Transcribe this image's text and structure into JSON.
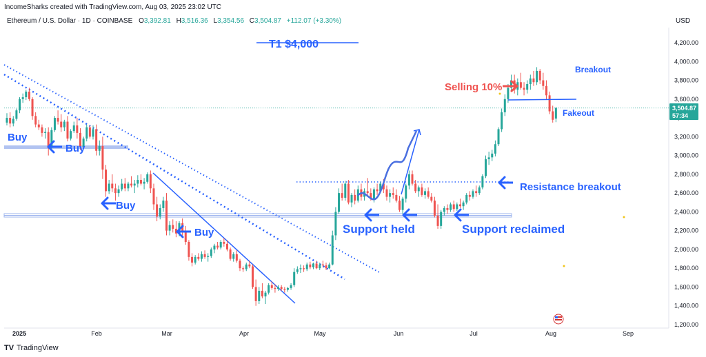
{
  "header": {
    "credit": "IncomeSharks created with TradingView.com, Aug 03, 2025 23:02 UTC",
    "symbol": "Ethereum / U.S. Dollar · 1D · COINBASE",
    "ohlc": [
      {
        "key": "O",
        "value": "3,392.81"
      },
      {
        "key": "H",
        "value": "3,516.36"
      },
      {
        "key": "L",
        "value": "3,354.56"
      },
      {
        "key": "C",
        "value": "3,504.87"
      }
    ],
    "change": "+112.07 (+3.30%)",
    "currency": "USD"
  },
  "footer": {
    "brand_logo": "TV",
    "brand": "TradingView"
  },
  "chart_data": {
    "type": "candlestick",
    "y_ticks": [
      "4,200.00",
      "4,000.00",
      "3,800.00",
      "3,600.00",
      "3,400.00",
      "3,200.00",
      "3,000.00",
      "2,800.00",
      "2,600.00",
      "2,400.00",
      "2,200.00",
      "2,000.00",
      "1,800.00",
      "1,600.00",
      "1,400.00",
      "1,200.00"
    ],
    "x_ticks": [
      "2025",
      "Feb",
      "Mar",
      "Apr",
      "May",
      "Jun",
      "Jul",
      "Aug",
      "Sep"
    ],
    "ylim": [
      1180,
      4320
    ],
    "last_price": "3,504.87",
    "countdown": "57:34",
    "candles": [
      [
        1,
        3350,
        3450,
        3320,
        3400
      ],
      [
        2,
        3400,
        3460,
        3300,
        3340
      ],
      [
        3,
        3340,
        3420,
        3310,
        3390
      ],
      [
        4,
        3390,
        3500,
        3370,
        3480
      ],
      [
        5,
        3480,
        3620,
        3450,
        3600
      ],
      [
        6,
        3600,
        3660,
        3560,
        3620
      ],
      [
        7,
        3620,
        3700,
        3590,
        3680
      ],
      [
        8,
        3680,
        3720,
        3580,
        3600
      ],
      [
        9,
        3600,
        3620,
        3380,
        3420
      ],
      [
        10,
        3420,
        3460,
        3300,
        3330
      ],
      [
        11,
        3330,
        3380,
        3270,
        3300
      ],
      [
        12,
        3300,
        3330,
        3200,
        3240
      ],
      [
        13,
        3240,
        3290,
        3180,
        3250
      ],
      [
        14,
        3250,
        3300,
        3000,
        3080
      ],
      [
        15,
        3080,
        3300,
        3060,
        3270
      ],
      [
        16,
        3270,
        3420,
        3250,
        3400
      ],
      [
        17,
        3400,
        3480,
        3330,
        3360
      ],
      [
        18,
        3360,
        3440,
        3250,
        3300
      ],
      [
        19,
        3300,
        3380,
        3260,
        3360
      ],
      [
        20,
        3360,
        3420,
        3150,
        3180
      ],
      [
        21,
        3180,
        3280,
        3160,
        3260
      ],
      [
        22,
        3260,
        3360,
        3240,
        3320
      ],
      [
        23,
        3320,
        3400,
        3180,
        3240
      ],
      [
        24,
        3240,
        3290,
        3060,
        3090
      ],
      [
        25,
        3090,
        3200,
        3080,
        3180
      ],
      [
        26,
        3180,
        3330,
        3150,
        3300
      ],
      [
        27,
        3300,
        3320,
        3180,
        3200
      ],
      [
        28,
        3200,
        3320,
        3170,
        3280
      ],
      [
        29,
        3280,
        3330,
        3000,
        3050
      ],
      [
        30,
        3050,
        3160,
        3000,
        3100
      ],
      [
        31,
        3100,
        3200,
        2750,
        2850
      ],
      [
        32,
        2850,
        2900,
        2560,
        2620
      ],
      [
        33,
        2620,
        2740,
        2590,
        2700
      ],
      [
        34,
        2700,
        2800,
        2610,
        2650
      ],
      [
        35,
        2650,
        2700,
        2520,
        2600
      ],
      [
        36,
        2600,
        2680,
        2560,
        2640
      ],
      [
        37,
        2640,
        2750,
        2620,
        2700
      ],
      [
        38,
        2700,
        2760,
        2620,
        2650
      ],
      [
        39,
        2650,
        2720,
        2620,
        2700
      ],
      [
        40,
        2700,
        2780,
        2660,
        2680
      ],
      [
        41,
        2680,
        2740,
        2600,
        2700
      ],
      [
        42,
        2700,
        2790,
        2660,
        2740
      ],
      [
        43,
        2740,
        2800,
        2680,
        2700
      ],
      [
        44,
        2700,
        2760,
        2640,
        2720
      ],
      [
        45,
        2720,
        2820,
        2700,
        2800
      ],
      [
        46,
        2800,
        2840,
        2600,
        2650
      ],
      [
        47,
        2650,
        2700,
        2420,
        2480
      ],
      [
        48,
        2480,
        2560,
        2300,
        2350
      ],
      [
        49,
        2350,
        2480,
        2320,
        2440
      ],
      [
        50,
        2440,
        2560,
        2400,
        2520
      ],
      [
        51,
        2520,
        2600,
        2150,
        2200
      ],
      [
        52,
        2200,
        2300,
        2150,
        2260
      ],
      [
        53,
        2260,
        2320,
        2180,
        2220
      ],
      [
        54,
        2220,
        2300,
        2130,
        2170
      ],
      [
        55,
        2170,
        2300,
        2140,
        2280
      ],
      [
        56,
        2280,
        2330,
        2150,
        2200
      ],
      [
        57,
        2200,
        2250,
        2050,
        2080
      ],
      [
        58,
        2080,
        2100,
        1880,
        1920
      ],
      [
        59,
        1920,
        1960,
        1820,
        1860
      ],
      [
        60,
        1860,
        1940,
        1840,
        1920
      ],
      [
        61,
        1920,
        1960,
        1880,
        1900
      ],
      [
        62,
        1900,
        1980,
        1870,
        1950
      ],
      [
        63,
        1950,
        1990,
        1900,
        1920
      ],
      [
        64,
        1920,
        1960,
        1870,
        1930
      ],
      [
        65,
        1930,
        2020,
        1910,
        2000
      ],
      [
        66,
        2000,
        2060,
        1960,
        2040
      ],
      [
        67,
        2040,
        2080,
        2000,
        2020
      ],
      [
        68,
        2020,
        2100,
        2000,
        2080
      ],
      [
        69,
        2080,
        2120,
        2030,
        2060
      ],
      [
        70,
        2060,
        2100,
        1980,
        2000
      ],
      [
        71,
        2000,
        2020,
        1880,
        1900
      ],
      [
        72,
        1900,
        1970,
        1870,
        1950
      ],
      [
        73,
        1950,
        1990,
        1860,
        1880
      ],
      [
        74,
        1880,
        1900,
        1770,
        1800
      ],
      [
        75,
        1800,
        1820,
        1760,
        1790
      ],
      [
        76,
        1790,
        1860,
        1770,
        1840
      ],
      [
        77,
        1840,
        1880,
        1800,
        1820
      ],
      [
        78,
        1820,
        1840,
        1580,
        1600
      ],
      [
        79,
        1600,
        1680,
        1400,
        1450
      ],
      [
        80,
        1450,
        1600,
        1420,
        1560
      ],
      [
        81,
        1560,
        1640,
        1480,
        1500
      ],
      [
        82,
        1500,
        1560,
        1420,
        1540
      ],
      [
        83,
        1540,
        1640,
        1520,
        1620
      ],
      [
        84,
        1620,
        1660,
        1570,
        1590
      ],
      [
        85,
        1590,
        1630,
        1540,
        1580
      ],
      [
        86,
        1580,
        1620,
        1560,
        1600
      ],
      [
        87,
        1600,
        1620,
        1560,
        1580
      ],
      [
        88,
        1580,
        1600,
        1540,
        1570
      ],
      [
        89,
        1570,
        1600,
        1550,
        1590
      ],
      [
        90,
        1590,
        1640,
        1570,
        1620
      ],
      [
        91,
        1620,
        1800,
        1600,
        1760
      ],
      [
        92,
        1760,
        1820,
        1740,
        1790
      ],
      [
        93,
        1790,
        1840,
        1750,
        1800
      ],
      [
        94,
        1800,
        1830,
        1760,
        1790
      ],
      [
        95,
        1790,
        1860,
        1770,
        1840
      ],
      [
        96,
        1840,
        1870,
        1790,
        1810
      ],
      [
        97,
        1810,
        1860,
        1790,
        1850
      ],
      [
        98,
        1850,
        1880,
        1790,
        1800
      ],
      [
        99,
        1800,
        1860,
        1780,
        1840
      ],
      [
        100,
        1840,
        1880,
        1810,
        1830
      ],
      [
        101,
        1830,
        1860,
        1780,
        1800
      ],
      [
        102,
        1800,
        1860,
        1790,
        1840
      ],
      [
        103,
        1840,
        2200,
        1830,
        2150
      ],
      [
        104,
        2150,
        2450,
        2100,
        2400
      ],
      [
        105,
        2400,
        2650,
        2380,
        2600
      ],
      [
        106,
        2600,
        2700,
        2520,
        2550
      ],
      [
        107,
        2550,
        2730,
        2520,
        2700
      ],
      [
        108,
        2700,
        2740,
        2480,
        2500
      ],
      [
        109,
        2500,
        2600,
        2450,
        2580
      ],
      [
        110,
        2580,
        2640,
        2480,
        2520
      ],
      [
        111,
        2520,
        2680,
        2500,
        2640
      ],
      [
        112,
        2640,
        2700,
        2520,
        2560
      ],
      [
        113,
        2560,
        2650,
        2520,
        2620
      ],
      [
        114,
        2620,
        2760,
        2580,
        2600
      ],
      [
        115,
        2600,
        2650,
        2520,
        2540
      ],
      [
        116,
        2540,
        2660,
        2500,
        2640
      ],
      [
        117,
        2640,
        2700,
        2580,
        2620
      ],
      [
        118,
        2620,
        2720,
        2600,
        2700
      ],
      [
        119,
        2700,
        2750,
        2600,
        2640
      ],
      [
        120,
        2640,
        2680,
        2520,
        2560
      ],
      [
        121,
        2560,
        2640,
        2500,
        2600
      ],
      [
        122,
        2600,
        2660,
        2540,
        2580
      ],
      [
        123,
        2580,
        2640,
        2500,
        2520
      ],
      [
        124,
        2520,
        2570,
        2400,
        2420
      ],
      [
        125,
        2420,
        2560,
        2380,
        2540
      ],
      [
        126,
        2540,
        2700,
        2500,
        2680
      ],
      [
        127,
        2680,
        2840,
        2640,
        2800
      ],
      [
        128,
        2800,
        2840,
        2680,
        2700
      ],
      [
        129,
        2700,
        2740,
        2600,
        2620
      ],
      [
        130,
        2620,
        2680,
        2560,
        2660
      ],
      [
        131,
        2660,
        2700,
        2560,
        2580
      ],
      [
        132,
        2580,
        2650,
        2540,
        2620
      ],
      [
        133,
        2620,
        2660,
        2540,
        2560
      ],
      [
        134,
        2560,
        2600,
        2500,
        2520
      ],
      [
        135,
        2520,
        2560,
        2340,
        2360
      ],
      [
        136,
        2360,
        2480,
        2220,
        2250
      ],
      [
        137,
        2250,
        2420,
        2220,
        2400
      ],
      [
        138,
        2400,
        2460,
        2360,
        2440
      ],
      [
        139,
        2440,
        2480,
        2380,
        2420
      ],
      [
        140,
        2420,
        2500,
        2400,
        2480
      ],
      [
        141,
        2480,
        2520,
        2400,
        2430
      ],
      [
        142,
        2430,
        2500,
        2410,
        2480
      ],
      [
        143,
        2480,
        2540,
        2440,
        2460
      ],
      [
        144,
        2460,
        2520,
        2420,
        2500
      ],
      [
        145,
        2500,
        2600,
        2480,
        2580
      ],
      [
        146,
        2580,
        2620,
        2520,
        2560
      ],
      [
        147,
        2560,
        2640,
        2540,
        2620
      ],
      [
        148,
        2620,
        2680,
        2560,
        2600
      ],
      [
        149,
        2600,
        2680,
        2580,
        2660
      ],
      [
        150,
        2660,
        2800,
        2640,
        2780
      ],
      [
        151,
        2780,
        3000,
        2760,
        2960
      ],
      [
        152,
        2960,
        3040,
        2900,
        2980
      ],
      [
        153,
        2980,
        3060,
        2940,
        3020
      ],
      [
        154,
        3020,
        3160,
        2990,
        3120
      ],
      [
        155,
        3120,
        3300,
        3100,
        3280
      ],
      [
        156,
        3280,
        3500,
        3250,
        3460
      ],
      [
        157,
        3460,
        3650,
        3420,
        3600
      ],
      [
        158,
        3600,
        3760,
        3560,
        3720
      ],
      [
        159,
        3720,
        3860,
        3680,
        3800
      ],
      [
        160,
        3800,
        3860,
        3660,
        3700
      ],
      [
        161,
        3700,
        3820,
        3640,
        3780
      ],
      [
        162,
        3780,
        3880,
        3700,
        3720
      ],
      [
        163,
        3720,
        3780,
        3640,
        3700
      ],
      [
        164,
        3700,
        3800,
        3660,
        3760
      ],
      [
        165,
        3760,
        3860,
        3700,
        3820
      ],
      [
        166,
        3820,
        3900,
        3740,
        3780
      ],
      [
        167,
        3780,
        3940,
        3750,
        3900
      ],
      [
        168,
        3900,
        3920,
        3760,
        3800
      ],
      [
        169,
        3800,
        3880,
        3700,
        3740
      ],
      [
        170,
        3740,
        3800,
        3600,
        3640
      ],
      [
        171,
        3640,
        3680,
        3440,
        3470
      ],
      [
        172,
        3470,
        3530,
        3350,
        3380
      ],
      [
        173,
        3392.81,
        3516.36,
        3354.56,
        3504.87
      ]
    ],
    "annotations": {
      "t1": "T1 $4,000",
      "buy": "Buy",
      "support_held": "Support held",
      "support_reclaimed": "Support reclaimed",
      "resistance_breakout": "Resistance breakout",
      "selling": "Selling 10%",
      "breakout": "Breakout",
      "fakeout": "Fakeout"
    },
    "colors": {
      "up": "#26a69a",
      "down": "#ef5350",
      "annotation": "#2962ff",
      "sell": "#ef5350",
      "band": "#9db4ee"
    }
  }
}
